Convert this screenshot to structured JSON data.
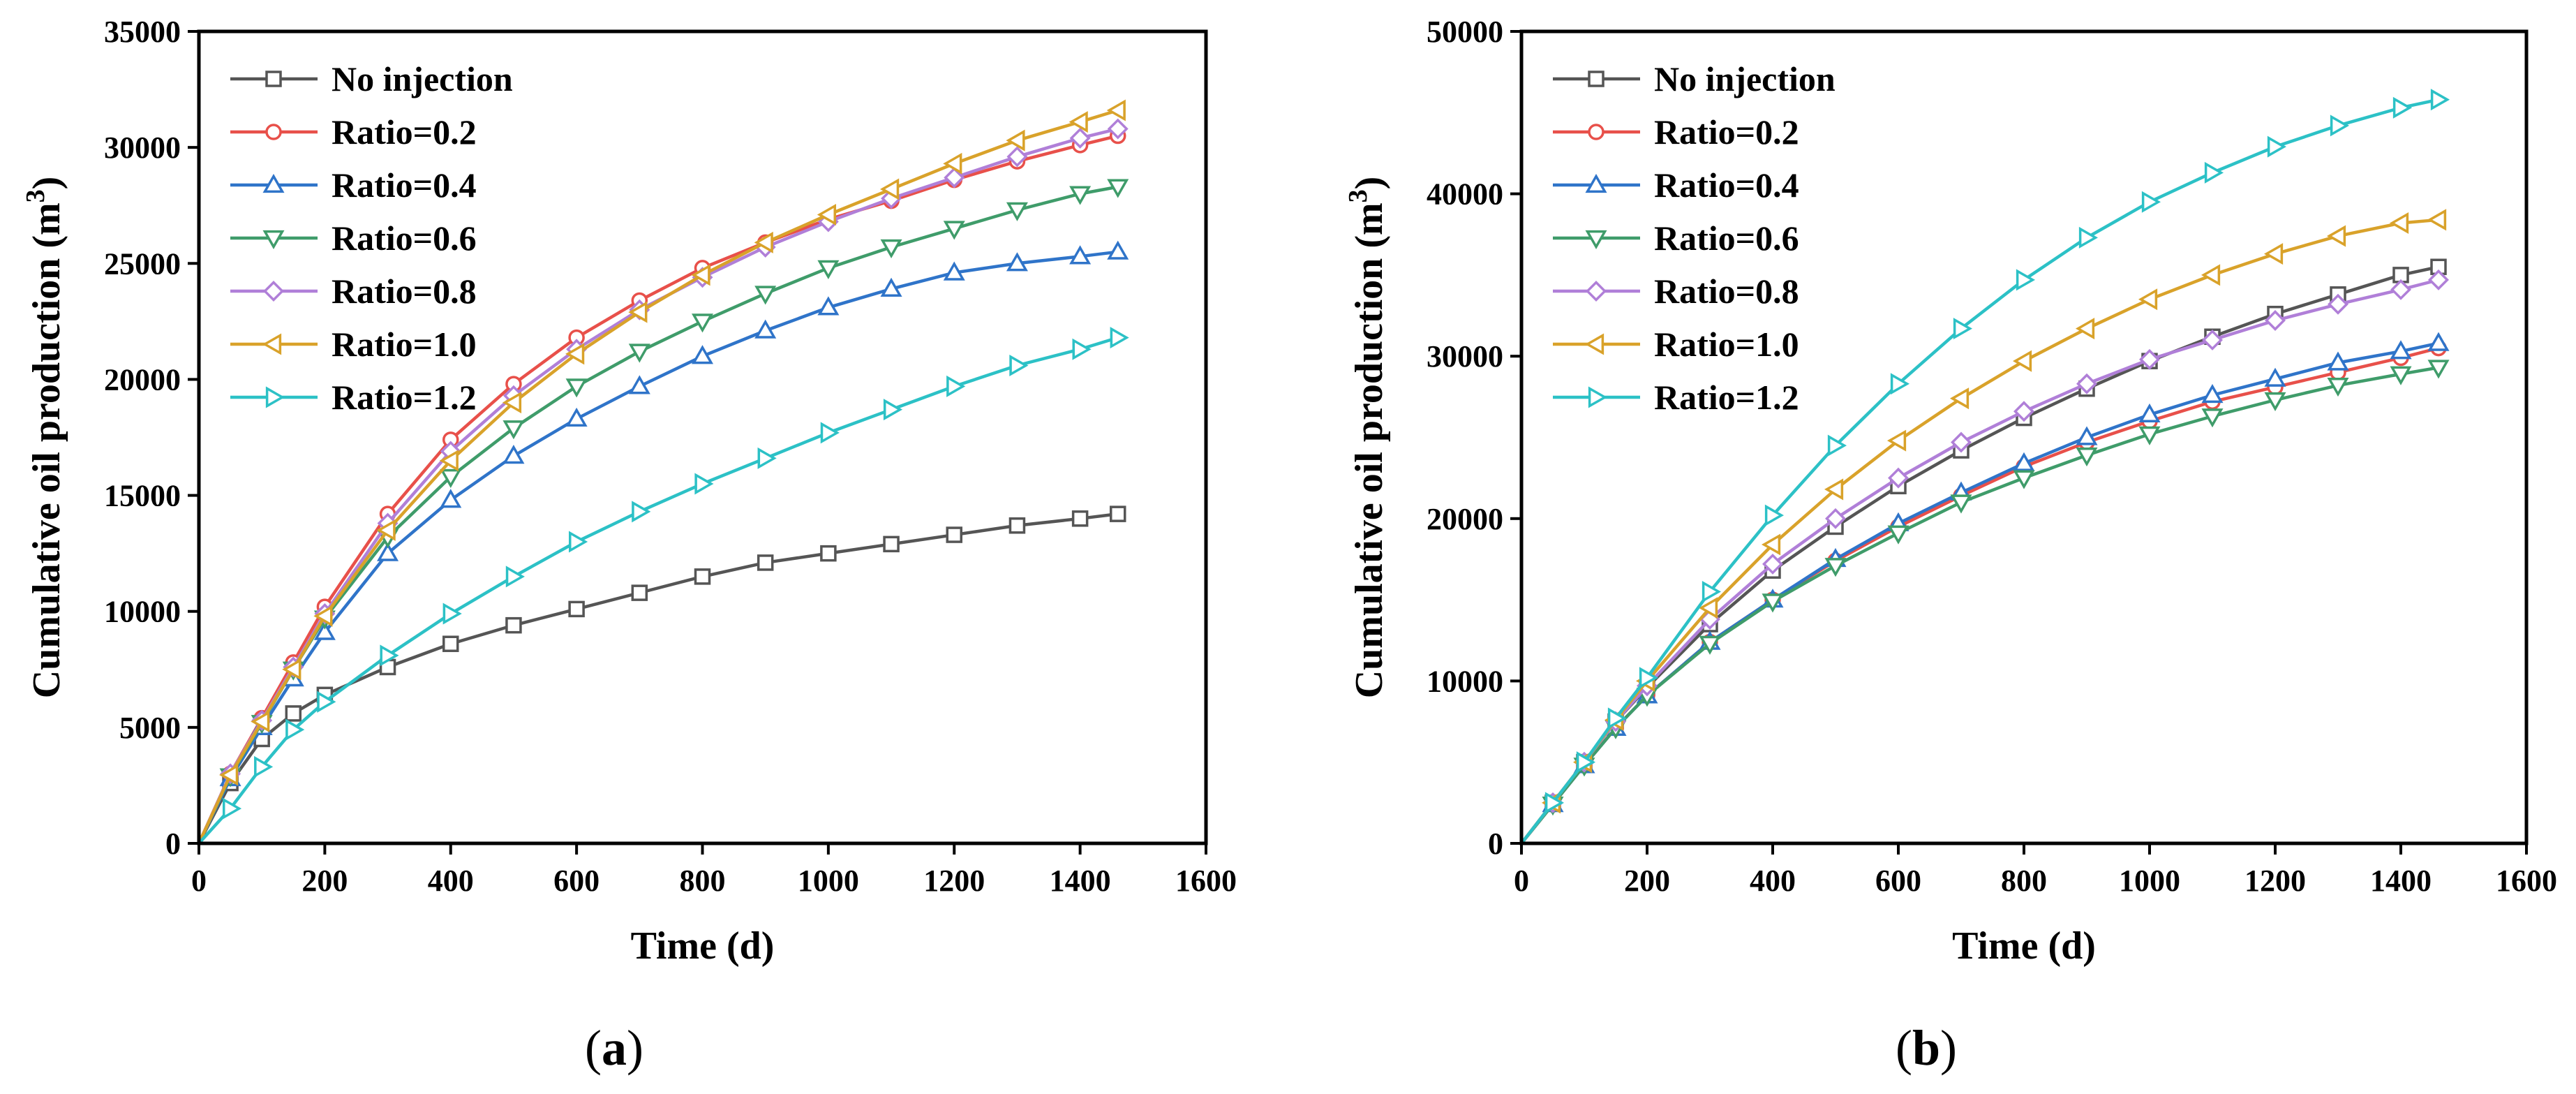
{
  "chart_data": [
    {
      "type": "line",
      "panel_label_open": "(",
      "panel_label_letter": "a",
      "panel_label_close": ")",
      "xlabel": "Time (d)",
      "ylabel_main": "Cumulative oil production (m",
      "ylabel_sup": "3",
      "ylabel_close": ")",
      "xlim": [
        0,
        1600
      ],
      "ylim": [
        0,
        35000
      ],
      "xticks": [
        0,
        200,
        400,
        600,
        800,
        1000,
        1200,
        1400,
        1600
      ],
      "yticks": [
        0,
        5000,
        10000,
        15000,
        20000,
        25000,
        30000,
        35000
      ],
      "x": [
        0,
        50,
        100,
        150,
        200,
        300,
        400,
        500,
        600,
        700,
        800,
        900,
        1000,
        1100,
        1200,
        1300,
        1400,
        1460
      ],
      "legend_position": "top-left",
      "series": [
        {
          "name": "No injection",
          "color": "#555555",
          "marker": "square",
          "values": [
            0,
            2600,
            4500,
            5600,
            6400,
            7600,
            8600,
            9400,
            10100,
            10800,
            11500,
            12100,
            12500,
            12900,
            13300,
            13700,
            14000,
            14200
          ]
        },
        {
          "name": "Ratio=0.2",
          "color": "#e8504a",
          "marker": "circle",
          "values": [
            0,
            3000,
            5400,
            7800,
            10200,
            14200,
            17400,
            19800,
            21800,
            23400,
            24800,
            25900,
            26900,
            27700,
            28600,
            29400,
            30100,
            30500
          ]
        },
        {
          "name": "Ratio=0.4",
          "color": "#2f74c9",
          "marker": "triangle-up",
          "values": [
            0,
            2800,
            5000,
            7100,
            9100,
            12500,
            14800,
            16700,
            18300,
            19700,
            21000,
            22100,
            23100,
            23900,
            24600,
            25000,
            25300,
            25500
          ]
        },
        {
          "name": "Ratio=0.6",
          "color": "#3f9c6a",
          "marker": "triangle-down",
          "values": [
            0,
            2900,
            5200,
            7500,
            9700,
            13200,
            15800,
            17900,
            19700,
            21200,
            22500,
            23700,
            24800,
            25700,
            26500,
            27300,
            28000,
            28300
          ]
        },
        {
          "name": "Ratio=0.8",
          "color": "#b07fd8",
          "marker": "diamond",
          "values": [
            0,
            3000,
            5300,
            7600,
            9900,
            13800,
            16900,
            19300,
            21300,
            23000,
            24400,
            25700,
            26800,
            27800,
            28700,
            29600,
            30400,
            30800
          ]
        },
        {
          "name": "Ratio=1.0",
          "color": "#d9a22a",
          "marker": "triangle-left",
          "values": [
            0,
            2950,
            5250,
            7500,
            9800,
            13500,
            16500,
            19000,
            21100,
            22900,
            24500,
            25900,
            27100,
            28200,
            29300,
            30300,
            31100,
            31600
          ]
        },
        {
          "name": "Ratio=1.2",
          "color": "#2cc1c6",
          "marker": "triangle-right",
          "values": [
            0,
            1500,
            3300,
            4900,
            6100,
            8100,
            9900,
            11500,
            13000,
            14300,
            15500,
            16600,
            17700,
            18700,
            19700,
            20600,
            21300,
            21800
          ]
        }
      ]
    },
    {
      "type": "line",
      "panel_label_open": "(",
      "panel_label_letter": "b",
      "panel_label_close": ")",
      "xlabel": "Time (d)",
      "ylabel_main": "Cumulative oil production (m",
      "ylabel_sup": "3",
      "ylabel_close": ")",
      "xlim": [
        0,
        1600
      ],
      "ylim": [
        0,
        50000
      ],
      "xticks": [
        0,
        200,
        400,
        600,
        800,
        1000,
        1200,
        1400,
        1600
      ],
      "yticks": [
        0,
        10000,
        20000,
        30000,
        40000,
        50000
      ],
      "x": [
        0,
        50,
        100,
        150,
        200,
        300,
        400,
        500,
        600,
        700,
        800,
        900,
        1000,
        1100,
        1200,
        1300,
        1400,
        1460
      ],
      "legend_position": "top-left",
      "series": [
        {
          "name": "No injection",
          "color": "#555555",
          "marker": "square",
          "values": [
            0,
            2500,
            5000,
            7500,
            9600,
            13500,
            16800,
            19500,
            22000,
            24200,
            26200,
            28000,
            29700,
            31200,
            32600,
            33800,
            35000,
            35500
          ]
        },
        {
          "name": "Ratio=0.2",
          "color": "#e8504a",
          "marker": "circle",
          "values": [
            0,
            2400,
            4800,
            7100,
            9100,
            12400,
            15000,
            17400,
            19500,
            21400,
            23200,
            24700,
            26000,
            27200,
            28100,
            29000,
            29900,
            30500
          ]
        },
        {
          "name": "Ratio=0.4",
          "color": "#2f74c9",
          "marker": "triangle-up",
          "values": [
            0,
            2400,
            4800,
            7100,
            9100,
            12400,
            15000,
            17500,
            19700,
            21600,
            23400,
            25000,
            26400,
            27600,
            28600,
            29600,
            30300,
            30800
          ]
        },
        {
          "name": "Ratio=0.6",
          "color": "#3f9c6a",
          "marker": "triangle-down",
          "values": [
            0,
            2400,
            4800,
            7100,
            9100,
            12300,
            14900,
            17100,
            19100,
            21000,
            22500,
            23900,
            25200,
            26300,
            27300,
            28200,
            28900,
            29300
          ]
        },
        {
          "name": "Ratio=0.8",
          "color": "#b07fd8",
          "marker": "diamond",
          "values": [
            0,
            2500,
            5000,
            7500,
            9700,
            13800,
            17200,
            20000,
            22500,
            24700,
            26600,
            28300,
            29800,
            31000,
            32200,
            33200,
            34100,
            34700
          ]
        },
        {
          "name": "Ratio=1.0",
          "color": "#d9a22a",
          "marker": "triangle-left",
          "values": [
            0,
            2500,
            5000,
            7600,
            10000,
            14500,
            18400,
            21800,
            24800,
            27400,
            29700,
            31700,
            33500,
            35000,
            36300,
            37400,
            38200,
            38400
          ]
        },
        {
          "name": "Ratio=1.2",
          "color": "#2cc1c6",
          "marker": "triangle-right",
          "values": [
            0,
            2500,
            5000,
            7700,
            10200,
            15500,
            20200,
            24500,
            28300,
            31700,
            34700,
            37300,
            39500,
            41300,
            42900,
            44200,
            45300,
            45800
          ]
        }
      ]
    }
  ]
}
